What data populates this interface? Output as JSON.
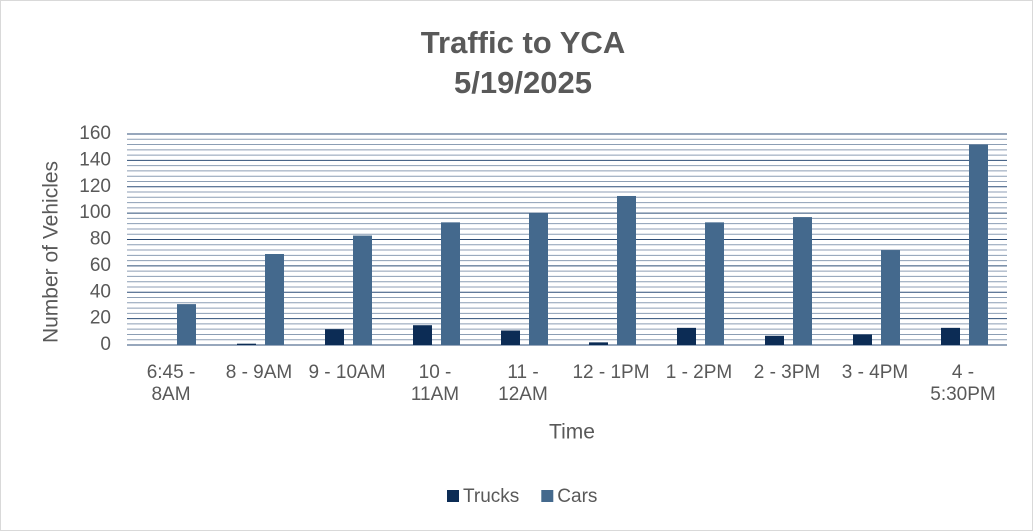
{
  "chart_data": {
    "type": "bar",
    "title": "Traffic to YCA",
    "subtitle": "5/19/2025",
    "x_label": "Time",
    "y_label": "Number of Vehicles",
    "categories": [
      "6:45 - 8AM",
      "8 - 9AM",
      "9 - 10AM",
      "10 - 11AM",
      "11 - 12AM",
      "12 - 1PM",
      "1 - 2PM",
      "2 - 3PM",
      "3 - 4PM",
      "4 - 5:30PM"
    ],
    "series": [
      {
        "name": "Trucks",
        "color": "#0c2c55",
        "values": [
          0,
          1,
          12,
          15,
          11,
          2,
          13,
          7,
          8,
          13
        ]
      },
      {
        "name": "Cars",
        "color": "#44698d",
        "values": [
          31,
          69,
          83,
          93,
          100,
          113,
          93,
          97,
          72,
          152
        ]
      }
    ],
    "ylim": [
      0,
      160
    ],
    "yticks": [
      0,
      20,
      40,
      60,
      80,
      100,
      120,
      140,
      160
    ],
    "minor_gridlines": [
      4,
      8,
      12,
      16,
      24,
      28,
      32,
      36,
      44,
      48,
      52,
      56,
      64,
      68,
      72,
      76,
      84,
      88,
      92,
      96,
      104,
      108,
      112,
      116,
      124,
      128,
      132,
      136,
      144,
      148,
      152,
      156
    ],
    "grid": true,
    "legend": "bottom"
  }
}
